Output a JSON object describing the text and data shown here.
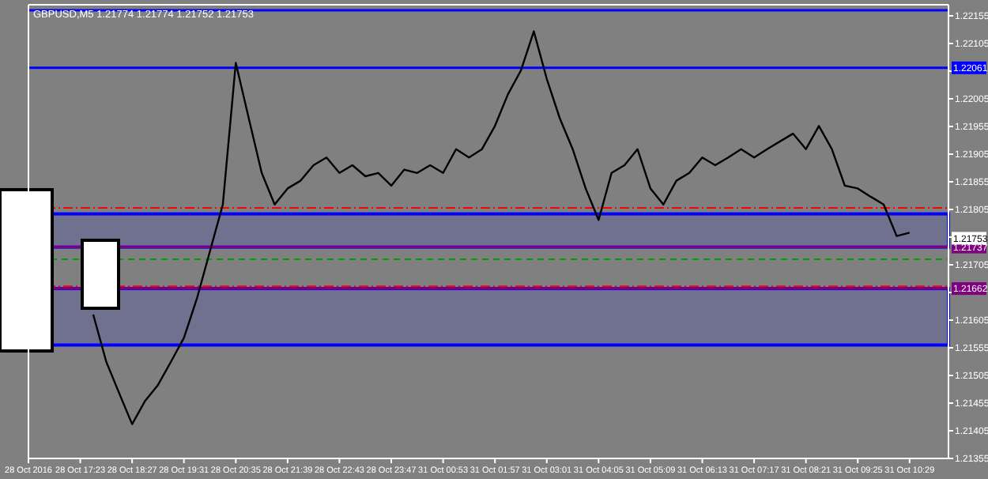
{
  "chart_data": {
    "type": "line",
    "title": "GBPUSD,M5  1.21774 1.21774 1.21752 1.21753",
    "categories": [
      "28 Oct 2016",
      null,
      null,
      null,
      "28 Oct 17:23",
      null,
      null,
      null,
      "28 Oct 18:27",
      null,
      null,
      null,
      "28 Oct 19:31",
      null,
      null,
      null,
      "28 Oct 20:35",
      null,
      null,
      null,
      "28 Oct 21:39",
      null,
      null,
      null,
      "28 Oct 22:43",
      null,
      null,
      null,
      "28 Oct 23:47",
      null,
      null,
      null,
      "31 Oct 00:53",
      null,
      null,
      null,
      "31 Oct 01:57",
      null,
      null,
      null,
      "31 Oct 03:01",
      null,
      null,
      null,
      "31 Oct 04:05",
      null,
      null,
      null,
      "31 Oct 05:09",
      null,
      null,
      null,
      "31 Oct 06:13",
      null,
      null,
      null,
      "31 Oct 07:17",
      null,
      null,
      null,
      "31 Oct 08:21",
      null,
      null,
      null,
      "31 Oct 09:25",
      null,
      null,
      null,
      "31 Oct 10:29",
      null,
      null,
      null
    ],
    "series": [
      {
        "color": "#000000",
        "values": [
          null,
          null,
          null,
          null,
          null,
          1.21615,
          1.2153,
          1.21473,
          1.21417,
          1.21459,
          1.21488,
          1.2153,
          1.21573,
          1.21644,
          1.21729,
          1.21814,
          1.2207,
          1.2197,
          1.21871,
          1.21814,
          1.21843,
          1.21857,
          1.21885,
          1.21899,
          1.21871,
          1.21885,
          1.21865,
          1.21871,
          1.21848,
          1.21877,
          1.21871,
          1.21885,
          1.21871,
          1.21914,
          1.21899,
          1.21914,
          1.21956,
          1.22013,
          1.22056,
          1.22127,
          1.22041,
          1.2197,
          1.21914,
          1.21843,
          1.21786,
          1.21871,
          1.21885,
          1.21914,
          1.21843,
          1.21814,
          1.21857,
          1.21871,
          1.21899,
          1.21885,
          1.21899,
          1.21914,
          1.21899,
          1.21914,
          1.21928,
          1.21942,
          1.21914,
          1.21956,
          1.21914,
          1.21848,
          1.21843,
          1.21828,
          1.21814,
          1.21757,
          1.21763,
          null,
          null,
          null
        ]
      }
    ],
    "ylim": [
      1.21355,
      1.22175
    ],
    "yticks": [
      1.22155,
      1.22105,
      {
        "value": 1.22055,
        "label": null
      },
      1.22005,
      1.21955,
      1.21905,
      1.21855,
      1.21805,
      {
        "value": 1.21755,
        "label": null
      },
      1.21705,
      {
        "value": 1.21655,
        "label": null
      },
      1.21605,
      1.21555,
      1.21505,
      1.21455,
      1.21405,
      1.21355
    ],
    "grid": false,
    "line_style": "solid",
    "ref_lines": [
      {
        "axis": "y",
        "value": 1.22165,
        "color": "#0000ff",
        "line_style": "solid"
      },
      {
        "axis": "y",
        "value": 1.22061,
        "label": "1.22061",
        "color": "#0000ff",
        "line_style": "solid"
      },
      {
        "axis": "y",
        "value": 1.21808,
        "color": "#ff0000",
        "line_style": "dashdot"
      },
      {
        "axis": "y",
        "value": 1.21737,
        "label": "1.21737",
        "color": "#800080",
        "line_style": "solid"
      },
      {
        "axis": "y",
        "value": 1.21715,
        "color": "#00a000",
        "line_style": "dashed"
      },
      {
        "axis": "y",
        "value": 1.21666,
        "color": "#ff0000",
        "line_style": "dashdot"
      },
      {
        "axis": "y",
        "value": 1.21662,
        "label": "1.21662",
        "color": "#800080",
        "line_style": "solid"
      }
    ],
    "bands": [
      {
        "axis": "y",
        "from": 1.21737,
        "to": 1.21797,
        "color": "#0000ff"
      },
      {
        "axis": "y",
        "from": 1.2156,
        "to": 1.21662,
        "color": "#0000ff"
      }
    ],
    "annotations": [
      {
        "text": "1.21753",
        "y": 1.21753
      }
    ]
  }
}
